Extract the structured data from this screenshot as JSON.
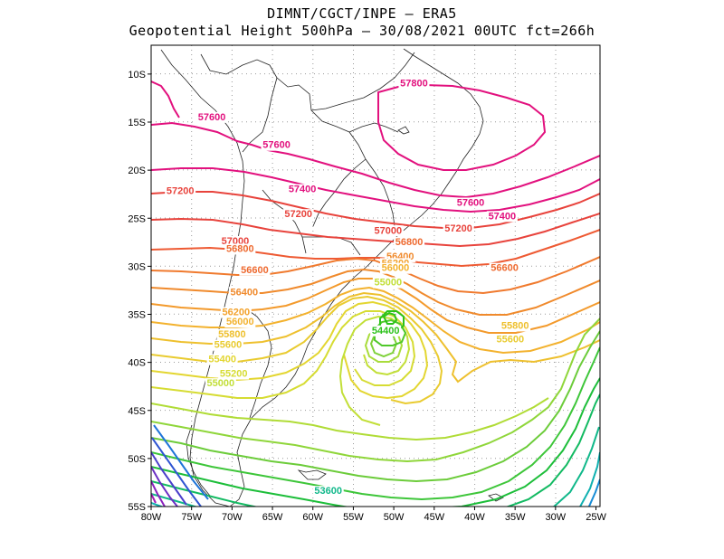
{
  "title": {
    "line1": "DIMNT/CGCT/INPE –  ERA5",
    "line2": "Geopotential Height 500hPa –   30/08/2021 00UTC fct=266h"
  },
  "axes": {
    "lon_ticks": [
      "80W",
      "75W",
      "70W",
      "65W",
      "60W",
      "55W",
      "50W",
      "45W",
      "40W",
      "35W",
      "30W",
      "25W"
    ],
    "lat_ticks": [
      "10S",
      "15S",
      "20S",
      "25S",
      "30S",
      "35S",
      "40S",
      "45S",
      "50S",
      "55S"
    ],
    "lon_range": [
      -80,
      -24.5
    ],
    "lat_range": [
      -55,
      -7
    ]
  },
  "contour_labels": [
    {
      "text": "57600",
      "lon": -72.5,
      "lat": -14.8,
      "color": "#e2117e"
    },
    {
      "text": "57600",
      "lon": -64.5,
      "lat": -17.7,
      "color": "#e2117e"
    },
    {
      "text": "57800",
      "lon": -47.5,
      "lat": -11.3,
      "color": "#e2117e"
    },
    {
      "text": "57600",
      "lon": -40.5,
      "lat": -23.7,
      "color": "#e2117e"
    },
    {
      "text": "57400",
      "lon": -61.3,
      "lat": -22.3,
      "color": "#e2117e"
    },
    {
      "text": "57400",
      "lon": -36.6,
      "lat": -25.1,
      "color": "#e2117e"
    },
    {
      "text": "57200",
      "lon": -76.4,
      "lat": -22.5,
      "color": "#e8433c"
    },
    {
      "text": "57200",
      "lon": -61.8,
      "lat": -24.9,
      "color": "#e8433c"
    },
    {
      "text": "57200",
      "lon": -42.0,
      "lat": -26.4,
      "color": "#e8433c"
    },
    {
      "text": "57000",
      "lon": -69.6,
      "lat": -27.7,
      "color": "#e8433c"
    },
    {
      "text": "57000",
      "lon": -50.7,
      "lat": -26.6,
      "color": "#e8433c"
    },
    {
      "text": "56800",
      "lon": -69.0,
      "lat": -28.5,
      "color": "#ee6a30"
    },
    {
      "text": "56800",
      "lon": -48.1,
      "lat": -27.8,
      "color": "#ee6a30"
    },
    {
      "text": "56600",
      "lon": -67.2,
      "lat": -30.7,
      "color": "#ee6a30"
    },
    {
      "text": "56600",
      "lon": -36.3,
      "lat": -30.5,
      "color": "#ee6a30"
    },
    {
      "text": "56400",
      "lon": -49.2,
      "lat": -29.3,
      "color": "#f08a2c"
    },
    {
      "text": "56400",
      "lon": -68.5,
      "lat": -33.0,
      "color": "#f08a2c"
    },
    {
      "text": "56200",
      "lon": -49.8,
      "lat": -30.0,
      "color": "#f3a22c"
    },
    {
      "text": "56200",
      "lon": -69.5,
      "lat": -35.1,
      "color": "#f3a22c"
    },
    {
      "text": "56000",
      "lon": -49.8,
      "lat": -30.5,
      "color": "#f3b22e"
    },
    {
      "text": "56000",
      "lon": -69.0,
      "lat": -36.1,
      "color": "#f3b22e"
    },
    {
      "text": "55800",
      "lon": -70.0,
      "lat": -37.4,
      "color": "#eec02e"
    },
    {
      "text": "55800",
      "lon": -35.0,
      "lat": -36.5,
      "color": "#eec02e"
    },
    {
      "text": "55600",
      "lon": -70.5,
      "lat": -38.5,
      "color": "#e9cb30"
    },
    {
      "text": "55600",
      "lon": -35.6,
      "lat": -37.9,
      "color": "#e9cb30"
    },
    {
      "text": "55400",
      "lon": -71.2,
      "lat": -40.0,
      "color": "#e3d631"
    },
    {
      "text": "55200",
      "lon": -69.8,
      "lat": -41.5,
      "color": "#d6dc33"
    },
    {
      "text": "55000",
      "lon": -71.4,
      "lat": -42.5,
      "color": "#c2df38"
    },
    {
      "text": "55000",
      "lon": -50.7,
      "lat": -32.0,
      "color": "#c2df38"
    },
    {
      "text": "54400",
      "lon": -51.0,
      "lat": -37.0,
      "color": "#2cc21a"
    },
    {
      "text": "53600",
      "lon": -58.1,
      "lat": -53.7,
      "color": "#10b88a"
    }
  ]
}
